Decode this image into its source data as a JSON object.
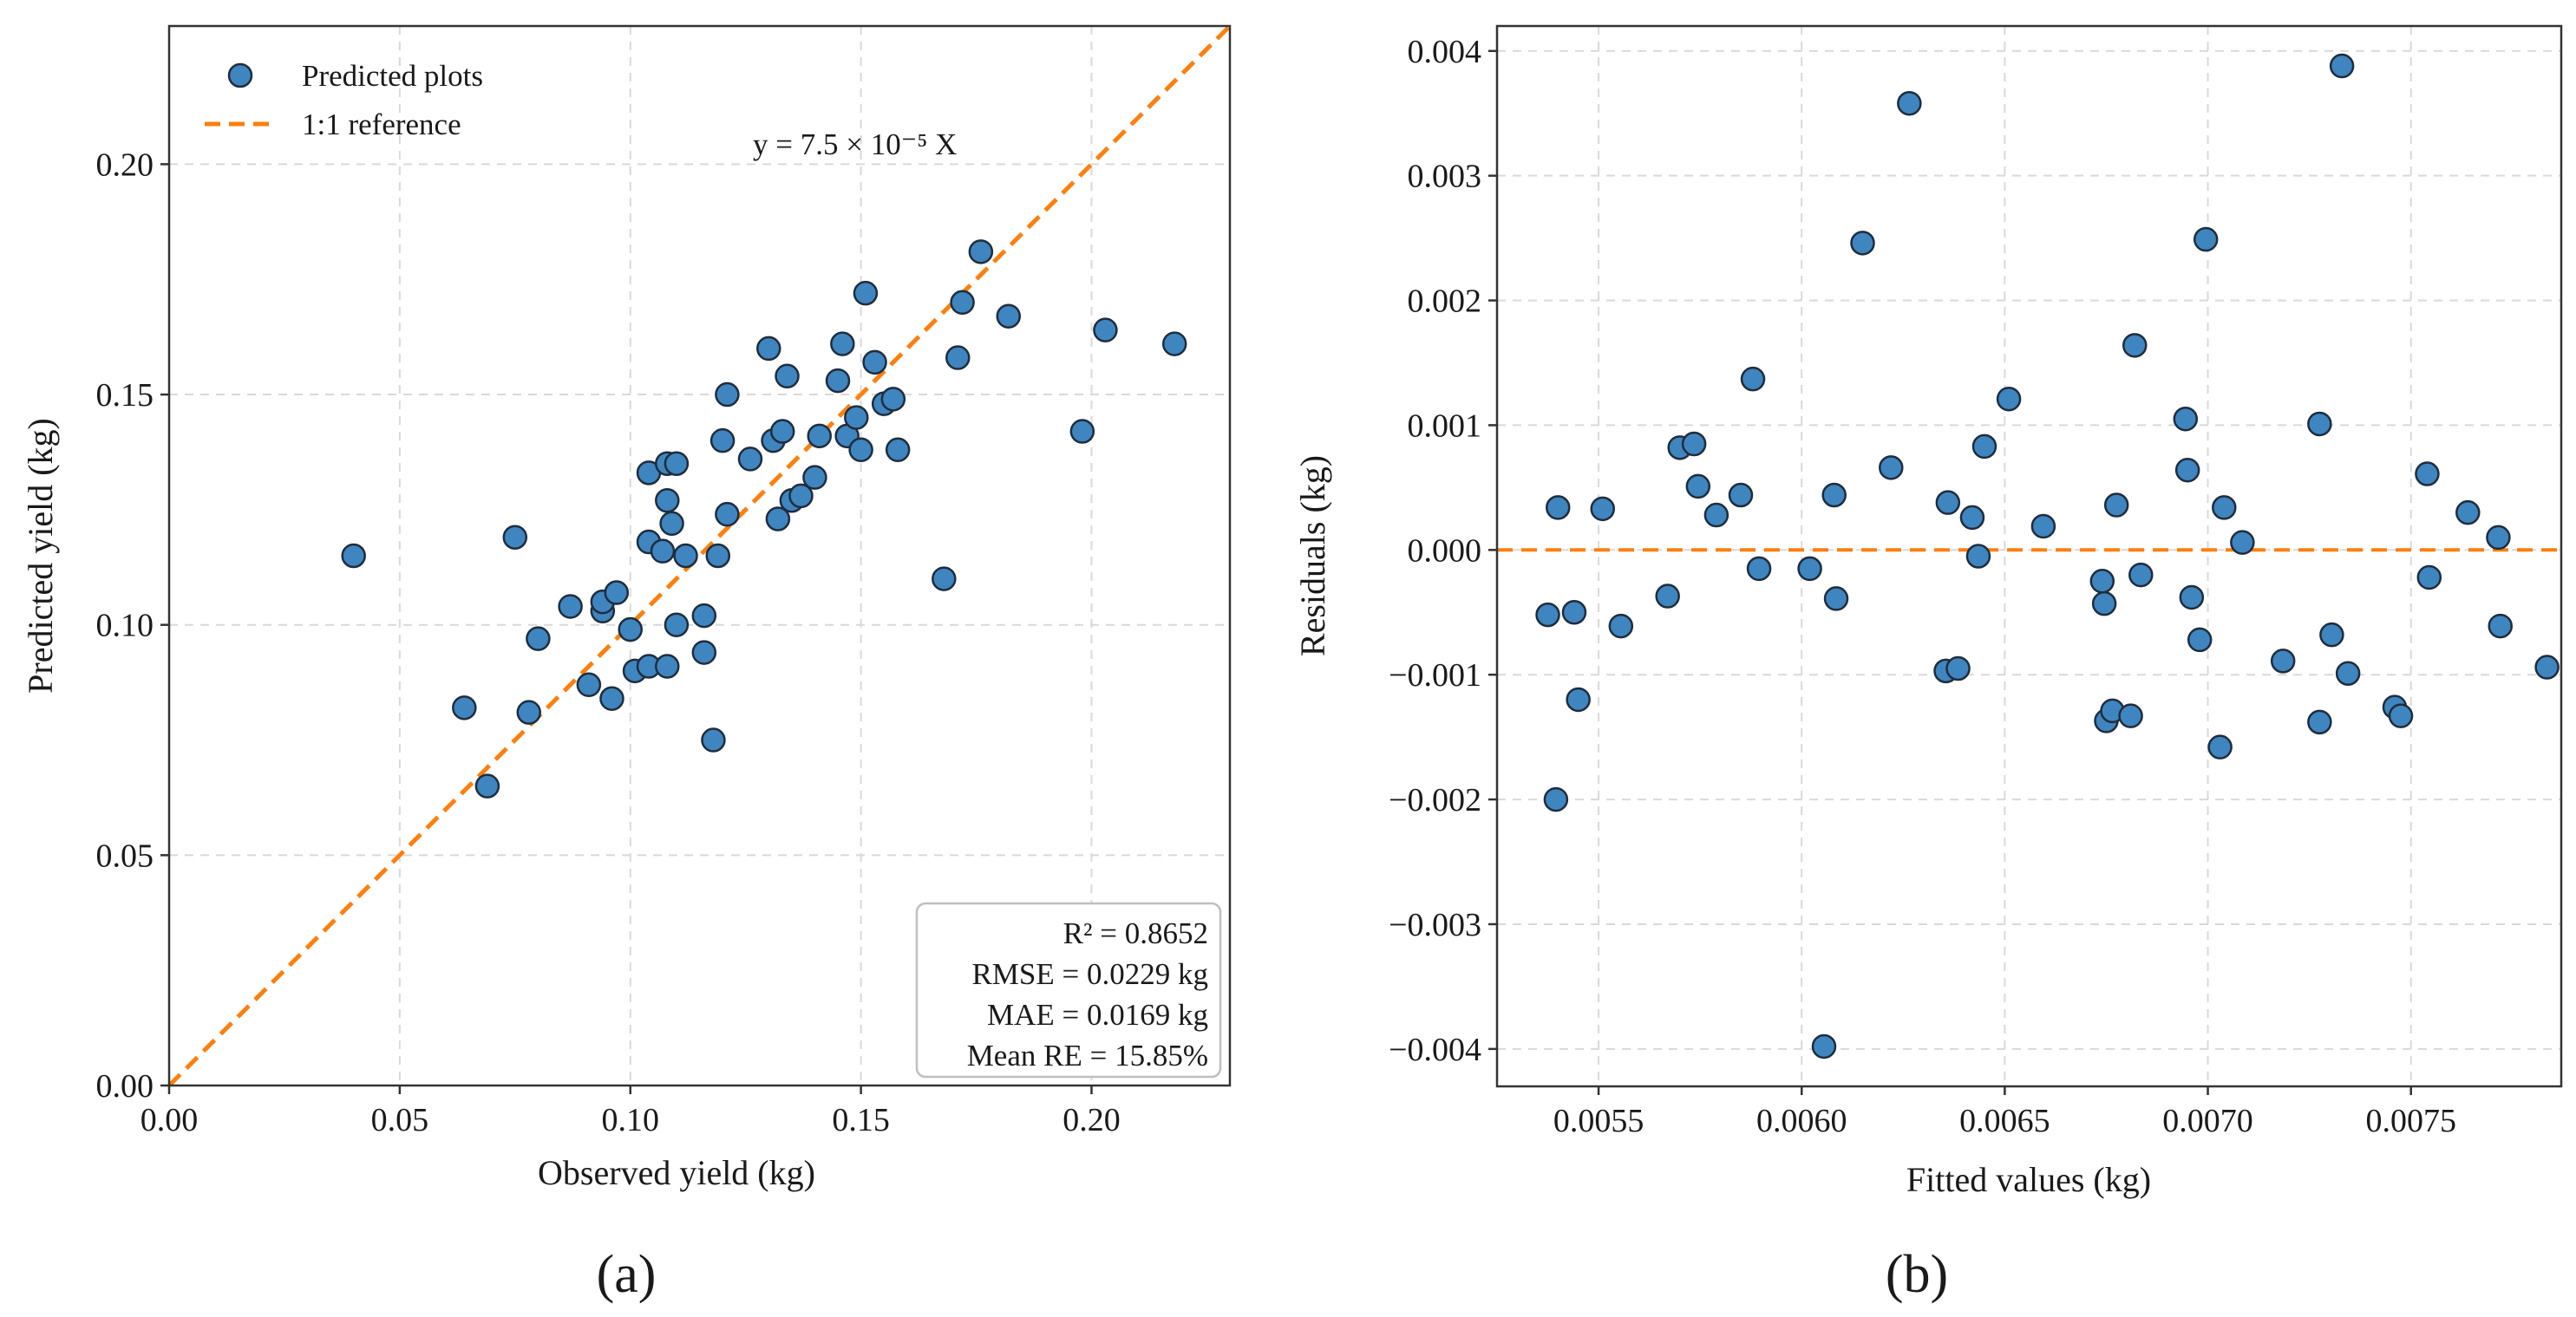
{
  "colors": {
    "point": "#3f85bf",
    "reference": "#ff7f0e",
    "text": "#1a1a1a"
  },
  "chart_data": [
    {
      "type": "scatter",
      "panel_label": "(a)",
      "xlabel": "Observed yield (kg)",
      "ylabel": "Predicted yield (kg)",
      "xlim": [
        0,
        0.23
      ],
      "ylim": [
        0,
        0.23
      ],
      "xticks": [
        0,
        0.05,
        0.1,
        0.15,
        0.2
      ],
      "yticks": [
        0,
        0.05,
        0.1,
        0.15,
        0.2
      ],
      "xtick_labels": [
        "0.00",
        "0.05",
        "0.10",
        "0.15",
        "0.20"
      ],
      "ytick_labels": [
        "0.00",
        "0.05",
        "0.10",
        "0.15",
        "0.20"
      ],
      "grid": true,
      "legend_position": "top-left",
      "legend": [
        "Predicted plots",
        "1:1 reference"
      ],
      "equation": "y = 7.5 × 10⁻⁵ X",
      "stats": [
        "R² = 0.8652",
        "RMSE = 0.0229 kg",
        "MAE = 0.0169 kg",
        "Mean RE = 15.85%"
      ],
      "reference_line": {
        "from": [
          0,
          0
        ],
        "to": [
          0.23,
          0.23
        ]
      },
      "points": [
        [
          0.04,
          0.115
        ],
        [
          0.064,
          0.082
        ],
        [
          0.069,
          0.065
        ],
        [
          0.075,
          0.119
        ],
        [
          0.078,
          0.081
        ],
        [
          0.08,
          0.097
        ],
        [
          0.087,
          0.104
        ],
        [
          0.091,
          0.087
        ],
        [
          0.094,
          0.103
        ],
        [
          0.094,
          0.105
        ],
        [
          0.096,
          0.084
        ],
        [
          0.097,
          0.107
        ],
        [
          0.1,
          0.099
        ],
        [
          0.101,
          0.09
        ],
        [
          0.104,
          0.091
        ],
        [
          0.104,
          0.133
        ],
        [
          0.104,
          0.118
        ],
        [
          0.107,
          0.116
        ],
        [
          0.108,
          0.091
        ],
        [
          0.108,
          0.127
        ],
        [
          0.108,
          0.135
        ],
        [
          0.109,
          0.122
        ],
        [
          0.11,
          0.135
        ],
        [
          0.11,
          0.1
        ],
        [
          0.112,
          0.115
        ],
        [
          0.116,
          0.102
        ],
        [
          0.116,
          0.094
        ],
        [
          0.118,
          0.075
        ],
        [
          0.119,
          0.115
        ],
        [
          0.12,
          0.14
        ],
        [
          0.121,
          0.15
        ],
        [
          0.121,
          0.124
        ],
        [
          0.126,
          0.136
        ],
        [
          0.13,
          0.16
        ],
        [
          0.131,
          0.14
        ],
        [
          0.132,
          0.123
        ],
        [
          0.133,
          0.142
        ],
        [
          0.134,
          0.154
        ],
        [
          0.135,
          0.127
        ],
        [
          0.137,
          0.128
        ],
        [
          0.14,
          0.132
        ],
        [
          0.141,
          0.141
        ],
        [
          0.145,
          0.153
        ],
        [
          0.146,
          0.161
        ],
        [
          0.147,
          0.141
        ],
        [
          0.149,
          0.145
        ],
        [
          0.15,
          0.138
        ],
        [
          0.151,
          0.172
        ],
        [
          0.153,
          0.157
        ],
        [
          0.155,
          0.148
        ],
        [
          0.157,
          0.149
        ],
        [
          0.158,
          0.138
        ],
        [
          0.168,
          0.11
        ],
        [
          0.171,
          0.158
        ],
        [
          0.172,
          0.17
        ],
        [
          0.176,
          0.181
        ],
        [
          0.182,
          0.167
        ],
        [
          0.198,
          0.142
        ],
        [
          0.203,
          0.164
        ],
        [
          0.218,
          0.161
        ]
      ]
    },
    {
      "type": "scatter",
      "panel_label": "(b)",
      "xlabel": "Fitted values (kg)",
      "ylabel": "Residuals (kg)",
      "xlim": [
        0.00525,
        0.00787
      ],
      "ylim": [
        -0.0043,
        0.0042
      ],
      "xticks": [
        0.0055,
        0.006,
        0.0065,
        0.007,
        0.0075
      ],
      "yticks": [
        -0.004,
        -0.003,
        -0.002,
        -0.001,
        0,
        0.001,
        0.002,
        0.003,
        0.004
      ],
      "xtick_labels": [
        "0.0055",
        "0.0060",
        "0.0065",
        "0.0070",
        "0.0075"
      ],
      "ytick_labels": [
        "−0.004",
        "−0.003",
        "−0.002",
        "−0.001",
        "0.000",
        "0.001",
        "0.002",
        "0.003",
        "0.004"
      ],
      "grid": true,
      "zero_line": 0,
      "points": [
        [
          0.005375,
          -0.00052
        ],
        [
          0.005395,
          -0.002
        ],
        [
          0.0054,
          0.00034
        ],
        [
          0.00544,
          -0.0005
        ],
        [
          0.00545,
          -0.0012
        ],
        [
          0.00551,
          0.00033
        ],
        [
          0.005555,
          -0.00061
        ],
        [
          0.00567,
          -0.00037
        ],
        [
          0.0057,
          0.00082
        ],
        [
          0.005735,
          0.00085
        ],
        [
          0.005745,
          0.00051
        ],
        [
          0.00579,
          0.00028
        ],
        [
          0.00585,
          0.00044
        ],
        [
          0.00588,
          0.00137
        ],
        [
          0.005895,
          -0.00015
        ],
        [
          0.00602,
          -0.00015
        ],
        [
          0.006055,
          -0.00398
        ],
        [
          0.00608,
          0.00044
        ],
        [
          0.006085,
          -0.00039
        ],
        [
          0.00615,
          0.00246
        ],
        [
          0.00622,
          0.00066
        ],
        [
          0.006265,
          0.00358
        ],
        [
          0.006355,
          -0.00097
        ],
        [
          0.00636,
          0.00038
        ],
        [
          0.006385,
          -0.00095
        ],
        [
          0.00642,
          0.00026
        ],
        [
          0.006435,
          -5e-05
        ],
        [
          0.00645,
          0.00083
        ],
        [
          0.00651,
          0.00121
        ],
        [
          0.006595,
          0.00019
        ],
        [
          0.00674,
          -0.00025
        ],
        [
          0.006745,
          -0.00043
        ],
        [
          0.00675,
          -0.00137
        ],
        [
          0.006765,
          -0.00129
        ],
        [
          0.006775,
          0.00036
        ],
        [
          0.00681,
          -0.00133
        ],
        [
          0.00682,
          0.00164
        ],
        [
          0.006835,
          -0.0002
        ],
        [
          0.006945,
          0.00105
        ],
        [
          0.00695,
          0.00064
        ],
        [
          0.00696,
          -0.00038
        ],
        [
          0.00698,
          -0.00072
        ],
        [
          0.006995,
          0.00249
        ],
        [
          0.00703,
          -0.00158
        ],
        [
          0.00704,
          0.00034
        ],
        [
          0.007085,
          6e-05
        ],
        [
          0.007185,
          -0.00089
        ],
        [
          0.007275,
          0.00101
        ],
        [
          0.007275,
          -0.00138
        ],
        [
          0.007305,
          -0.00068
        ],
        [
          0.00733,
          0.00388
        ],
        [
          0.007345,
          -0.00099
        ],
        [
          0.00746,
          -0.00126
        ],
        [
          0.007475,
          -0.00133
        ],
        [
          0.00754,
          0.00061
        ],
        [
          0.007545,
          -0.00022
        ],
        [
          0.00764,
          0.0003
        ],
        [
          0.007715,
          0.0001
        ],
        [
          0.00772,
          -0.00061
        ],
        [
          0.007835,
          -0.00094
        ]
      ]
    }
  ]
}
